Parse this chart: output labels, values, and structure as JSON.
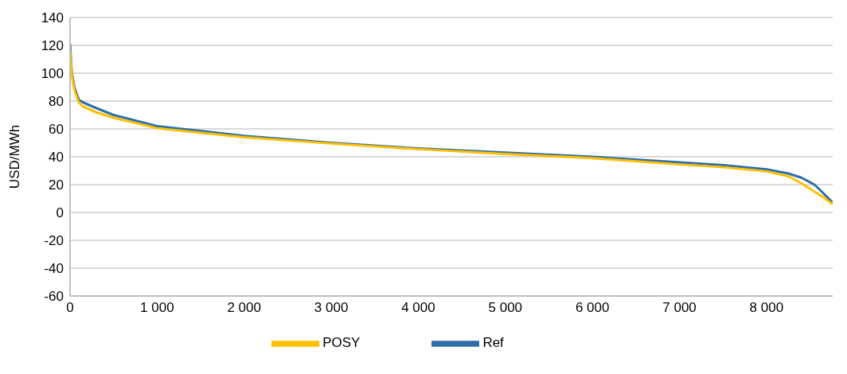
{
  "chart_data": {
    "type": "line",
    "ylabel": "USD/MWh",
    "xlim": [
      0,
      8760
    ],
    "xticks": [
      0,
      {
        "value": 1000,
        "label": "1 000"
      },
      {
        "value": 2000,
        "label": "2 000"
      },
      {
        "value": 3000,
        "label": "3 000"
      },
      {
        "value": 4000,
        "label": "4 000"
      },
      {
        "value": 5000,
        "label": "5 000"
      },
      {
        "value": 6000,
        "label": "6 000"
      },
      {
        "value": 7000,
        "label": "7 000"
      },
      {
        "value": 8000,
        "label": "8 000"
      }
    ],
    "ylim": [
      -60,
      140
    ],
    "yticks": [
      -60,
      -40,
      -20,
      0,
      20,
      40,
      60,
      80,
      100,
      120,
      140
    ],
    "grid": "y",
    "legend": "bottom",
    "line_style": "solid",
    "marker": "none",
    "x": [
      0,
      20,
      50,
      100,
      150,
      300,
      500,
      1000,
      2000,
      3000,
      4000,
      5000,
      6000,
      7000,
      7500,
      8000,
      8250,
      8400,
      8550,
      8650,
      8760
    ],
    "series": [
      {
        "name": "Ref",
        "color": "#2e6fa7",
        "values": [
          121,
          100,
          90,
          81,
          79,
          75,
          70,
          62,
          55,
          50,
          46,
          43,
          40,
          36,
          34,
          31,
          28,
          25,
          20,
          14,
          7
        ]
      },
      {
        "name": "POSY",
        "color": "#ffc000",
        "values": [
          116,
          98,
          88,
          79,
          76,
          72,
          68,
          60.5,
          54,
          49.5,
          45.5,
          42,
          39,
          34.5,
          32.5,
          29.5,
          26,
          21,
          15,
          11,
          6
        ]
      }
    ]
  }
}
